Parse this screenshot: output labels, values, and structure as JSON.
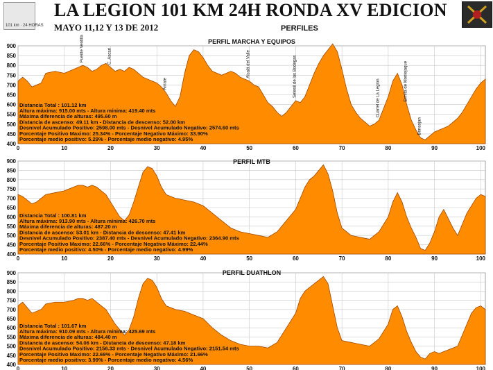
{
  "header": {
    "title": "LA LEGION 101 KM 24H RONDA XV EDICION",
    "subtitle": "MAYO 11,12 Y 13 DE 2012",
    "section": "PERFILES",
    "logo_left_text": "101 km · 24 HORAS"
  },
  "colors": {
    "fill": "#ff8c00",
    "stroke": "#a04800",
    "grid": "#c8c8c8"
  },
  "chart_data": [
    {
      "type": "area",
      "title": "PERFIL MARCHA Y EQUIPOS",
      "xlim": [
        0,
        101
      ],
      "ylim": [
        400,
        900
      ],
      "xticks": [
        0,
        10,
        20,
        30,
        40,
        50,
        60,
        70,
        80,
        90,
        100
      ],
      "yticks": [
        400,
        450,
        500,
        550,
        600,
        650,
        700,
        750,
        800,
        850,
        900
      ],
      "x": [
        0,
        1,
        2,
        3,
        4,
        5,
        6,
        8,
        10,
        12,
        13,
        14,
        15,
        16,
        17,
        18,
        19,
        20,
        21,
        22,
        23,
        24,
        25,
        26,
        27,
        28,
        29,
        30,
        31,
        32,
        33,
        34,
        35,
        36,
        37,
        38,
        39,
        40,
        41,
        42,
        43,
        44,
        45,
        46,
        47,
        48,
        49,
        50,
        51,
        52,
        53,
        54,
        55,
        56,
        57,
        58,
        59,
        60,
        61,
        62,
        63,
        64,
        65,
        66,
        67,
        68,
        69,
        70,
        71,
        72,
        73,
        74,
        75,
        76,
        77,
        78,
        79,
        80,
        81,
        82,
        83,
        84,
        85,
        86,
        87,
        88,
        89,
        90,
        91,
        92,
        93,
        94,
        95,
        96,
        97,
        98,
        99,
        100,
        101
      ],
      "y": [
        720,
        740,
        720,
        690,
        700,
        710,
        760,
        770,
        760,
        780,
        790,
        800,
        790,
        770,
        780,
        800,
        810,
        790,
        770,
        780,
        770,
        790,
        780,
        760,
        740,
        730,
        720,
        710,
        690,
        660,
        620,
        590,
        640,
        760,
        850,
        880,
        870,
        840,
        800,
        770,
        760,
        750,
        760,
        770,
        760,
        740,
        730,
        720,
        700,
        690,
        650,
        610,
        590,
        560,
        540,
        560,
        590,
        620,
        610,
        640,
        700,
        760,
        810,
        850,
        880,
        910,
        870,
        780,
        680,
        600,
        560,
        530,
        510,
        490,
        500,
        520,
        580,
        640,
        720,
        760,
        700,
        600,
        520,
        470,
        430,
        420,
        440,
        460,
        470,
        480,
        490,
        510,
        530,
        560,
        600,
        640,
        680,
        710,
        730
      ],
      "stats": [
        "Distancia Total : 101.12 km",
        "Altura máxima: 915.00 mts - Altura mínima: 419.40 mts",
        "Máxima diferencia de alturas: 495.60 m",
        "Distancia de ascenso: 49.11 km - Distancia de descenso: 52.00 km",
        "Desnivel Acumulado Positivo: 2598.00 mts - Desnivel Acumulado Negativo: 2574.60 mts",
        "Porcentaje Positivo Maximo: 25.34% - Porcentaje Negativo Máximo: 33.90%",
        "Porcentaje medio positivo: 5.29% - Porcentaje medio negativo: 4.95%"
      ],
      "places": [
        {
          "name": "Puente Ventilla",
          "x": 14
        },
        {
          "name": "C. Ascari",
          "x": 20
        },
        {
          "name": "Arriate",
          "x": 32
        },
        {
          "name": "Alcalá del Valle",
          "x": 50
        },
        {
          "name": "Setenil de las Bodegas",
          "x": 60
        },
        {
          "name": "Cuartel de La Legion",
          "x": 78
        },
        {
          "name": "Ermita de Montejaque",
          "x": 84
        },
        {
          "name": "Benaojan",
          "x": 87
        }
      ]
    },
    {
      "type": "area",
      "title": "PERFIL MTB",
      "xlim": [
        0,
        101
      ],
      "ylim": [
        400,
        900
      ],
      "xticks": [
        0,
        10,
        20,
        30,
        40,
        50,
        60,
        70,
        80,
        90,
        100
      ],
      "yticks": [
        400,
        450,
        500,
        550,
        600,
        650,
        700,
        750,
        800,
        850,
        900
      ],
      "x": [
        0,
        1,
        2,
        3,
        4,
        5,
        6,
        8,
        10,
        12,
        13,
        14,
        15,
        16,
        17,
        18,
        19,
        20,
        21,
        22,
        23,
        24,
        25,
        26,
        27,
        28,
        29,
        30,
        31,
        32,
        34,
        36,
        38,
        40,
        42,
        44,
        46,
        48,
        50,
        52,
        54,
        56,
        58,
        60,
        61,
        62,
        63,
        64,
        65,
        66,
        67,
        68,
        69,
        70,
        72,
        74,
        76,
        78,
        80,
        81,
        82,
        83,
        84,
        85,
        86,
        87,
        88,
        89,
        90,
        91,
        92,
        93,
        94,
        95,
        96,
        97,
        98,
        99,
        100,
        101
      ],
      "y": [
        720,
        710,
        690,
        670,
        680,
        700,
        720,
        730,
        740,
        760,
        770,
        770,
        760,
        770,
        760,
        740,
        720,
        680,
        640,
        600,
        580,
        610,
        680,
        760,
        840,
        870,
        860,
        820,
        760,
        720,
        700,
        690,
        680,
        660,
        620,
        580,
        540,
        520,
        510,
        500,
        490,
        520,
        580,
        640,
        700,
        760,
        800,
        820,
        850,
        880,
        830,
        740,
        620,
        540,
        500,
        490,
        480,
        520,
        600,
        680,
        730,
        680,
        600,
        540,
        490,
        430,
        420,
        460,
        520,
        600,
        640,
        590,
        540,
        500,
        560,
        620,
        660,
        700,
        720,
        710
      ],
      "stats": [
        "Distancia Total : 100.81 km",
        "Altura máxima: 913.90 mts - Altura mínima: 426.70 mts",
        "Máxima diferencia de alturas: 487.20 m",
        "Distancia de ascenso: 53.01 km - Distancia de descenso: 47.41 km",
        "Desnivel Acumulado Positivo: 2387.40 mts - Desnivel Acumulado Negativo: 2364.90 mts",
        "Porcentaje Positivo Maximo: 22.66% - Porcentaje Negativo Máximo: 22.44%",
        "Porcentaje medio positivo: 4.50% - Porcentaje medio negativo: 4.99%"
      ]
    },
    {
      "type": "area",
      "title": "PERFIL DUATHLON",
      "xlim": [
        0,
        101
      ],
      "ylim": [
        400,
        900
      ],
      "xticks": [
        0,
        10,
        20,
        30,
        40,
        50,
        60,
        70,
        80,
        90,
        100
      ],
      "yticks": [
        400,
        450,
        500,
        550,
        600,
        650,
        700,
        750,
        800,
        850,
        900
      ],
      "x": [
        0,
        1,
        2,
        3,
        4,
        5,
        6,
        8,
        10,
        12,
        13,
        14,
        15,
        16,
        17,
        18,
        19,
        20,
        21,
        22,
        23,
        24,
        25,
        26,
        27,
        28,
        29,
        30,
        31,
        32,
        34,
        36,
        38,
        40,
        42,
        44,
        46,
        48,
        50,
        52,
        54,
        56,
        58,
        60,
        61,
        62,
        63,
        64,
        65,
        66,
        67,
        68,
        69,
        70,
        72,
        74,
        76,
        78,
        80,
        81,
        82,
        83,
        84,
        85,
        86,
        87,
        88,
        89,
        90,
        91,
        92,
        93,
        94,
        95,
        96,
        97,
        98,
        99,
        100,
        101
      ],
      "y": [
        720,
        740,
        710,
        680,
        690,
        700,
        730,
        740,
        740,
        750,
        760,
        760,
        750,
        760,
        740,
        720,
        700,
        660,
        620,
        590,
        560,
        590,
        660,
        760,
        840,
        870,
        860,
        820,
        760,
        720,
        700,
        690,
        670,
        650,
        600,
        560,
        530,
        510,
        500,
        500,
        490,
        520,
        600,
        680,
        760,
        800,
        820,
        840,
        860,
        880,
        840,
        720,
        600,
        530,
        520,
        510,
        500,
        540,
        620,
        700,
        720,
        660,
        580,
        520,
        470,
        440,
        430,
        460,
        470,
        460,
        470,
        480,
        490,
        500,
        560,
        620,
        680,
        710,
        720,
        700
      ],
      "stats": [
        "Distancia Total : 101.67 km",
        "Altura máxima: 910.09 mts - Altura mínima: 425.69 mts",
        "Máxima diferencia de alturas: 484.40 m",
        "Distancia de ascenso: 54.06 km - Distancia de descenso: 47.18 km",
        "Desnivel Acumulado Positivo: 2156.33 mts - Desnivel Acumulado Negativo: 2151.54 mts",
        "Porcentaje Positivo Maximo: 22.69% - Porcentaje Negativo Máximo: 21.66%",
        "Porcentaje medio positivo: 3.99% - Porcentaje medio negativo: 4.56%"
      ]
    }
  ]
}
